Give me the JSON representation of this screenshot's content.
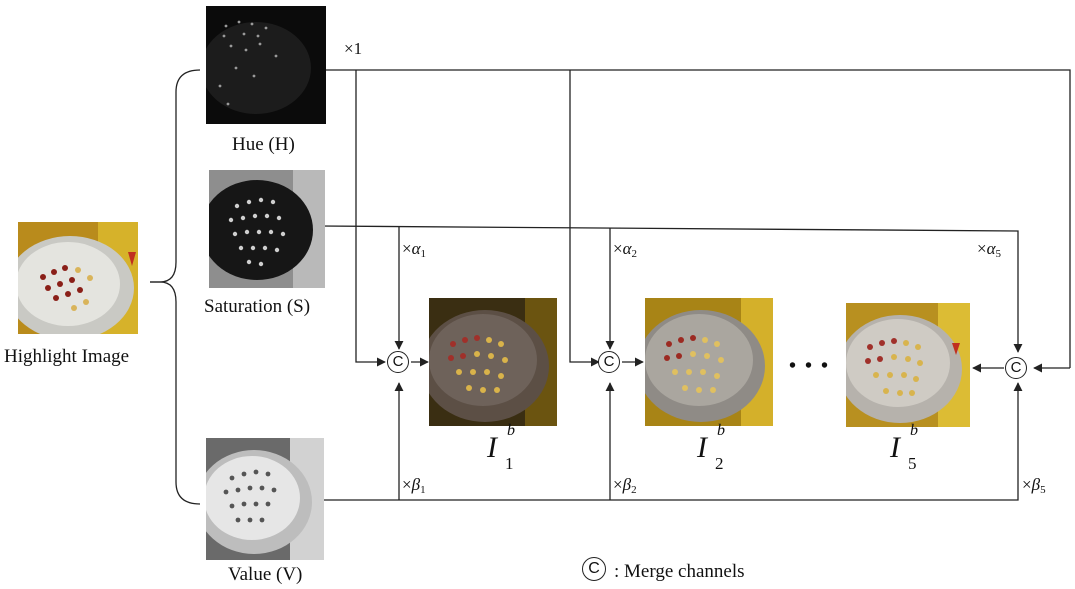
{
  "input": {
    "label": "Highlight Image"
  },
  "channels": {
    "hue": {
      "label": "Hue (H)",
      "multiplier": "×1"
    },
    "saturation": {
      "label": "Saturation (S)"
    },
    "value": {
      "label": "Value (V)"
    }
  },
  "coefficients": {
    "alpha": [
      {
        "prefix": "×",
        "symbol": "α",
        "sub": "1"
      },
      {
        "prefix": "×",
        "symbol": "α",
        "sub": "2"
      },
      {
        "prefix": "×",
        "symbol": "α",
        "sub": "5"
      }
    ],
    "beta": [
      {
        "prefix": "×",
        "symbol": "β",
        "sub": "1"
      },
      {
        "prefix": "×",
        "symbol": "β",
        "sub": "2"
      },
      {
        "prefix": "×",
        "symbol": "β",
        "sub": "5"
      }
    ]
  },
  "outputs": [
    {
      "symbol": "I",
      "sup": "b",
      "sub": "1"
    },
    {
      "symbol": "I",
      "sup": "b",
      "sub": "2"
    },
    {
      "symbol": "I",
      "sup": "b",
      "sub": "5"
    }
  ],
  "ellipsis": "• • •",
  "merge_symbol": "C",
  "legend": {
    "symbol": "C",
    "text": ": Merge channels"
  },
  "colors": {
    "line": "#222222",
    "panel_yellow": "#c8a21a",
    "panel_dark": "#2a2418"
  }
}
